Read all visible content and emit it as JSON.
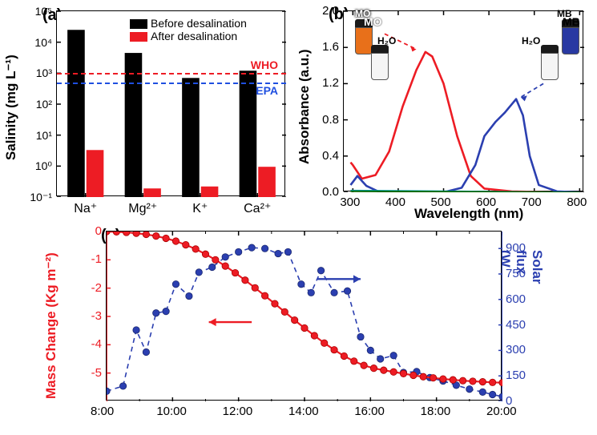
{
  "panel_a": {
    "label": "(a)",
    "ylabel": "Salinity (mg L⁻¹)",
    "xticks": [
      "Na⁺",
      "Mg²⁺",
      "K⁺",
      "Ca²⁺"
    ],
    "yticks": [
      "10⁻¹",
      "10⁰",
      "10¹",
      "10²",
      "10³",
      "10⁴",
      "10⁵"
    ],
    "ylog": [
      -1,
      0,
      1,
      2,
      3,
      4,
      5
    ],
    "before": {
      "values": [
        25000,
        4500,
        700,
        1200
      ],
      "color": "#000000",
      "label": "Before desalination"
    },
    "after": {
      "values": [
        3.3,
        0.19,
        0.22,
        0.95
      ],
      "color": "#ed1c24",
      "label": "After desalination"
    },
    "who": {
      "value": 1000,
      "color": "#ed1c24",
      "label": "WHO"
    },
    "epa": {
      "value": 500,
      "color": "#1f4fe0",
      "label": "EPA"
    },
    "bar_group_gap": 0.24,
    "bar_w": 0.33
  },
  "panel_b": {
    "label": "(b)",
    "xlabel": "Wavelength (nm)",
    "ylabel": "Absorbance (a.u.)",
    "xlim": [
      280,
      810
    ],
    "xticks": [
      300,
      400,
      500,
      600,
      700,
      800
    ],
    "ylim": [
      0,
      2.0
    ],
    "yticks": [
      "0.0",
      "0.4",
      "0.8",
      "1.2",
      "1.6",
      "2.0"
    ],
    "series": [
      {
        "name": "MO",
        "color": "#ed1c24",
        "width": 2.6,
        "pts": [
          [
            295,
            0.33
          ],
          [
            300,
            0.3
          ],
          [
            320,
            0.15
          ],
          [
            350,
            0.19
          ],
          [
            380,
            0.45
          ],
          [
            410,
            0.95
          ],
          [
            440,
            1.35
          ],
          [
            460,
            1.55
          ],
          [
            475,
            1.5
          ],
          [
            500,
            1.2
          ],
          [
            530,
            0.62
          ],
          [
            560,
            0.18
          ],
          [
            590,
            0.04
          ],
          [
            650,
            0.01
          ],
          [
            750,
            0.0
          ],
          [
            800,
            0.0
          ]
        ]
      },
      {
        "name": "MB",
        "color": "#2b3fb0",
        "width": 2.6,
        "pts": [
          [
            295,
            0.08
          ],
          [
            310,
            0.18
          ],
          [
            330,
            0.07
          ],
          [
            360,
            0.0
          ],
          [
            500,
            0.0
          ],
          [
            540,
            0.05
          ],
          [
            570,
            0.3
          ],
          [
            590,
            0.62
          ],
          [
            615,
            0.78
          ],
          [
            635,
            0.88
          ],
          [
            660,
            1.03
          ],
          [
            675,
            0.85
          ],
          [
            690,
            0.4
          ],
          [
            710,
            0.08
          ],
          [
            750,
            0.01
          ],
          [
            800,
            0.0
          ]
        ]
      },
      {
        "name": "MO-after",
        "color": "#009999",
        "width": 1.8,
        "pts": [
          [
            295,
            0.02
          ],
          [
            800,
            0.0
          ]
        ]
      },
      {
        "name": "MB-after",
        "color": "#006600",
        "width": 1.8,
        "pts": [
          [
            295,
            0.01
          ],
          [
            800,
            0.0
          ]
        ]
      }
    ],
    "mo_label": "MO",
    "mb_label": "MB",
    "h2o": "H₂O",
    "mo_color": "#e8701a",
    "mb_color": "#2939a2"
  },
  "panel_c": {
    "label": "(c)",
    "xlabel_times": [
      "8:00",
      "10:00",
      "12:00",
      "14:00",
      "16:00",
      "18:00",
      "20:00"
    ],
    "left": {
      "label": "Mass Change (Kg m⁻²)",
      "color": "#ed1c24",
      "ylim": [
        -6,
        0
      ],
      "yticks": [
        "0",
        "-1",
        "-2",
        "-3",
        "-4",
        "-5"
      ]
    },
    "right": {
      "label": "Solar flux (W m⁻²)",
      "color": "#2b3fb0",
      "ylim": [
        0,
        1000
      ],
      "yticks": [
        "0",
        "150",
        "300",
        "450",
        "600",
        "750",
        "900"
      ]
    },
    "mass": {
      "color": "#ed1c24",
      "pts": [
        [
          8.0,
          0.0
        ],
        [
          8.3,
          -0.01
        ],
        [
          8.6,
          -0.03
        ],
        [
          8.9,
          -0.06
        ],
        [
          9.2,
          -0.1
        ],
        [
          9.5,
          -0.16
        ],
        [
          9.8,
          -0.24
        ],
        [
          10.1,
          -0.34
        ],
        [
          10.4,
          -0.47
        ],
        [
          10.7,
          -0.62
        ],
        [
          11.0,
          -0.8
        ],
        [
          11.3,
          -1.0
        ],
        [
          11.6,
          -1.22
        ],
        [
          11.9,
          -1.46
        ],
        [
          12.2,
          -1.72
        ],
        [
          12.5,
          -1.99
        ],
        [
          12.8,
          -2.27
        ],
        [
          13.1,
          -2.55
        ],
        [
          13.4,
          -2.84
        ],
        [
          13.7,
          -3.13
        ],
        [
          14.0,
          -3.41
        ],
        [
          14.3,
          -3.68
        ],
        [
          14.6,
          -3.94
        ],
        [
          14.9,
          -4.18
        ],
        [
          15.2,
          -4.4
        ],
        [
          15.5,
          -4.58
        ],
        [
          15.8,
          -4.73
        ],
        [
          16.1,
          -4.83
        ],
        [
          16.4,
          -4.9
        ],
        [
          16.7,
          -4.96
        ],
        [
          17.0,
          -5.02
        ],
        [
          17.3,
          -5.08
        ],
        [
          17.6,
          -5.13
        ],
        [
          17.9,
          -5.17
        ],
        [
          18.2,
          -5.21
        ],
        [
          18.5,
          -5.24
        ],
        [
          18.8,
          -5.27
        ],
        [
          19.1,
          -5.29
        ],
        [
          19.4,
          -5.31
        ],
        [
          19.7,
          -5.33
        ],
        [
          20.0,
          -5.34
        ]
      ]
    },
    "flux": {
      "color": "#2b3fb0",
      "pts": [
        [
          8.0,
          60
        ],
        [
          8.5,
          90
        ],
        [
          8.9,
          420
        ],
        [
          9.2,
          290
        ],
        [
          9.5,
          520
        ],
        [
          9.8,
          530
        ],
        [
          10.1,
          690
        ],
        [
          10.5,
          620
        ],
        [
          10.8,
          760
        ],
        [
          11.2,
          790
        ],
        [
          11.6,
          850
        ],
        [
          12.0,
          880
        ],
        [
          12.4,
          905
        ],
        [
          12.8,
          900
        ],
        [
          13.2,
          870
        ],
        [
          13.5,
          880
        ],
        [
          13.9,
          690
        ],
        [
          14.2,
          640
        ],
        [
          14.5,
          770
        ],
        [
          14.9,
          640
        ],
        [
          15.3,
          650
        ],
        [
          15.7,
          380
        ],
        [
          16.0,
          300
        ],
        [
          16.3,
          250
        ],
        [
          16.7,
          270
        ],
        [
          17.0,
          170
        ],
        [
          17.4,
          175
        ],
        [
          17.8,
          140
        ],
        [
          18.2,
          120
        ],
        [
          18.6,
          95
        ],
        [
          19.0,
          72
        ],
        [
          19.4,
          55
        ],
        [
          19.7,
          40
        ],
        [
          20.0,
          28
        ]
      ]
    }
  }
}
